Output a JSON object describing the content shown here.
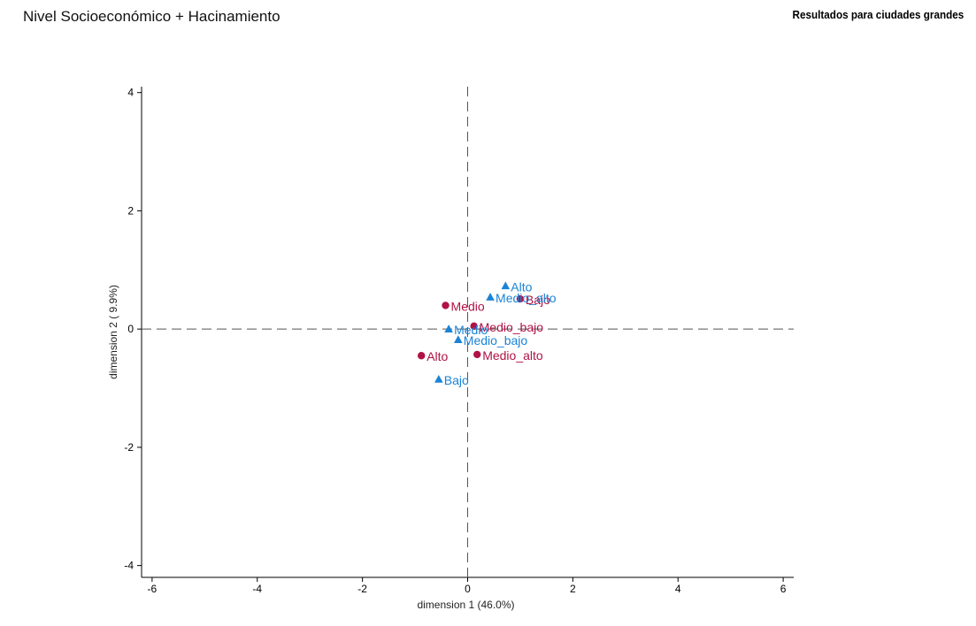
{
  "header": {
    "title": "Nivel Socioeconómico + Hacinamiento",
    "subtitle": "Resultados para ciudades grandes"
  },
  "chart_data": {
    "type": "scatter",
    "title": "Nivel Socioeconómico + Hacinamiento",
    "subtitle": "Resultados para ciudades grandes",
    "xlabel": "dimension 1 (46.0%)",
    "ylabel": "dimension 2 ( 9.9%)",
    "xlim": [
      -6.2,
      6.2
    ],
    "ylim": [
      -4.2,
      4.1
    ],
    "xticks": [
      -6,
      -4,
      -2,
      0,
      2,
      4,
      6
    ],
    "yticks": [
      -4,
      -2,
      0,
      2,
      4
    ],
    "reference_lines": {
      "x": 0,
      "y": 0,
      "style": "dashed"
    },
    "grid": false,
    "series": [
      {
        "marker": "circle",
        "color": "#b01245",
        "points": [
          {
            "label": "Medio",
            "x": -0.42,
            "y": 0.4
          },
          {
            "label": "Bajo",
            "x": 1.0,
            "y": 0.51
          },
          {
            "label": "Medio_bajo",
            "x": 0.12,
            "y": 0.05
          },
          {
            "label": "Alto",
            "x": -0.88,
            "y": -0.45
          },
          {
            "label": "Medio_alto",
            "x": 0.18,
            "y": -0.43
          }
        ]
      },
      {
        "marker": "triangle",
        "color": "#1a83d6",
        "points": [
          {
            "label": "Alto",
            "x": 0.72,
            "y": 0.73
          },
          {
            "label": "Medio_alto",
            "x": 0.43,
            "y": 0.54
          },
          {
            "label": "Medio",
            "x": -0.36,
            "y": 0.0
          },
          {
            "label": "Medio_bajo",
            "x": -0.18,
            "y": -0.18
          },
          {
            "label": "Bajo",
            "x": -0.55,
            "y": -0.85
          }
        ]
      }
    ]
  }
}
